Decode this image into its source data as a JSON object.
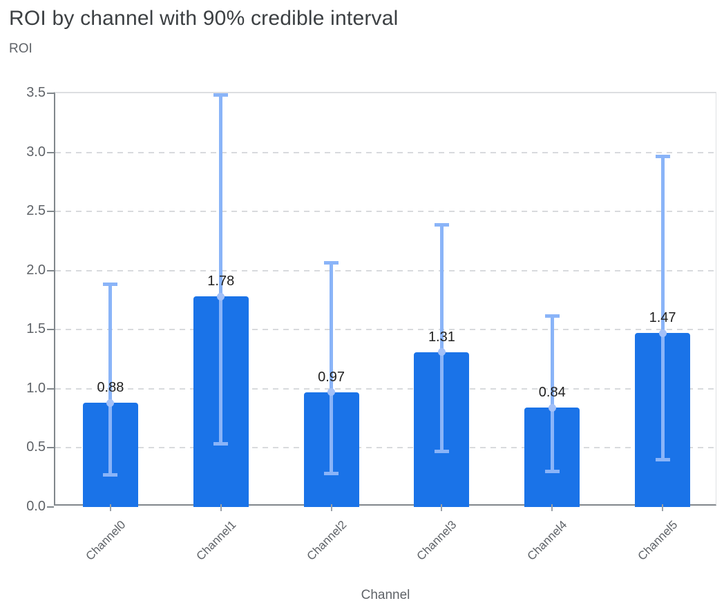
{
  "chart_data": {
    "type": "bar",
    "title": "ROI by channel with 90% credible interval",
    "xlabel": "Channel",
    "ylabel": "ROI",
    "ylim": [
      0,
      3.5
    ],
    "y_ticks": [
      0.0,
      0.5,
      1.0,
      1.5,
      2.0,
      2.5,
      3.0,
      3.5
    ],
    "y_tick_labels": [
      "0.0",
      "0.5",
      "1.0",
      "1.5",
      "2.0",
      "2.5",
      "3.0",
      "3.5"
    ],
    "categories": [
      "Channel0",
      "Channel1",
      "Channel2",
      "Channel3",
      "Channel4",
      "Channel5"
    ],
    "values": [
      0.88,
      1.78,
      0.97,
      1.31,
      0.84,
      1.47
    ],
    "value_labels": [
      "0.88",
      "1.78",
      "0.97",
      "1.31",
      "0.84",
      "1.47"
    ],
    "error_low": [
      0.27,
      0.53,
      0.28,
      0.47,
      0.3,
      0.4
    ],
    "error_high": [
      1.89,
      3.49,
      2.07,
      2.39,
      1.62,
      2.97
    ],
    "grid": "horizontal-dashed",
    "legend": "none",
    "colors": {
      "bar": "#1a73e8",
      "error_bar": "#8ab4f8",
      "error_marker": "#a2c0f8",
      "grid_line": "#d8dadd",
      "axis_line": "#80868b",
      "tick_label": "#5f6368",
      "value_label": "#1f1f1f",
      "title": "#3c4043"
    }
  }
}
